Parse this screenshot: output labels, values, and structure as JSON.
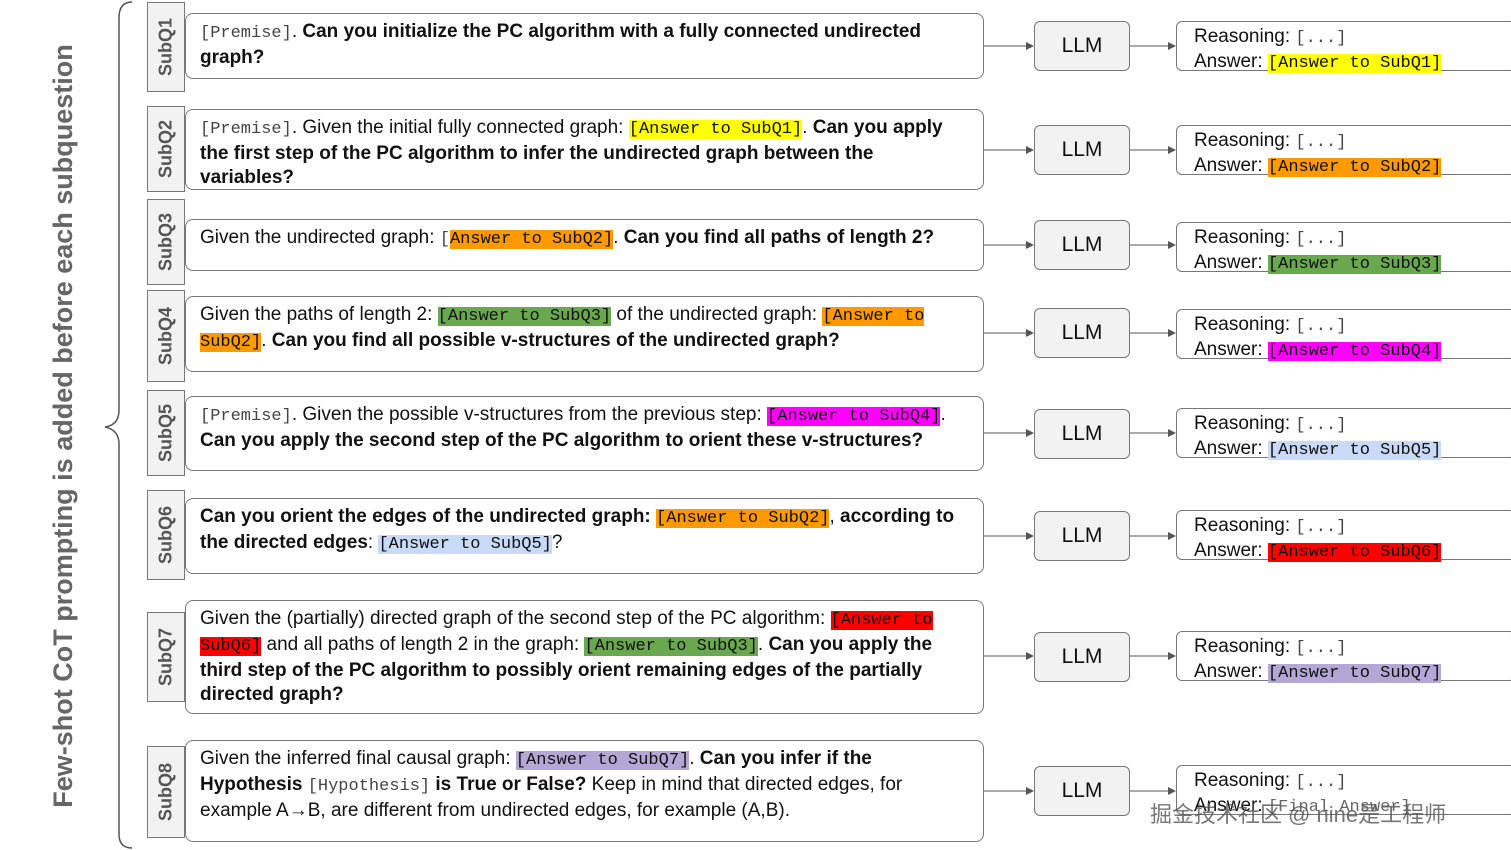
{
  "side_label": "Few-shot CoT prompting is added before each subquestion",
  "llm_label": "LLM",
  "reasoning_label": "Reasoning:",
  "reasoning_placeholder": "[...]",
  "answer_label": "Answer:",
  "colors": {
    "subq1": "#ffff00",
    "subq2": "#ff9900",
    "subq3": "#6aa84f",
    "subq4": "#ff00ff",
    "subq5": "#c9daf8",
    "subq6": "#ff0000",
    "subq7": "#b4a7d6"
  },
  "rows": [
    {
      "tag": "SubQ1",
      "answer_text": "[Answer to SubQ1]",
      "q": [
        [
          "[Premise]",
          "mono"
        ],
        [
          ". ",
          "n"
        ],
        [
          "Can you initialize the PC algorithm with a fully connected undirected graph?",
          "b"
        ]
      ]
    },
    {
      "tag": "SubQ2",
      "answer_text": "[Answer to SubQ2]",
      "q": [
        [
          "[Premise]",
          "mono"
        ],
        [
          ". Given the initial fully connected graph: ",
          "n"
        ],
        [
          "[Answer to SubQ1]",
          "hl1"
        ],
        [
          ". ",
          "n"
        ],
        [
          "Can you apply the first step of the PC algorithm to infer the undirected graph between the variables?",
          "b"
        ]
      ]
    },
    {
      "tag": "SubQ3",
      "answer_text": "[Answer to SubQ3]",
      "q": [
        [
          "Given the undirected graph: ",
          "n"
        ],
        [
          "[",
          "mono"
        ],
        [
          "Answer to SubQ2]",
          "hl2"
        ],
        [
          ". ",
          "n"
        ],
        [
          "Can you find all paths of length 2?",
          "b"
        ]
      ]
    },
    {
      "tag": "SubQ4",
      "answer_text": "[Answer to SubQ4]",
      "q": [
        [
          "Given the paths of length 2: ",
          "n"
        ],
        [
          "[Answer to SubQ3]",
          "hl3"
        ],
        [
          " of the undirected graph: ",
          "n"
        ],
        [
          "[Answer to SubQ2]",
          "hl2"
        ],
        [
          ". ",
          "n"
        ],
        [
          "Can you find all possible v-structures of the undirected graph?",
          "b"
        ]
      ]
    },
    {
      "tag": "SubQ5",
      "answer_text": "[Answer to SubQ5]",
      "q": [
        [
          "[Premise]",
          "mono"
        ],
        [
          ". Given the possible v-structures from the previous step: ",
          "n"
        ],
        [
          "[Answer to SubQ4]",
          "hl4"
        ],
        [
          ". ",
          "n"
        ],
        [
          "Can you apply the second step of the PC algorithm to orient these v-structures?",
          "b"
        ]
      ]
    },
    {
      "tag": "SubQ6",
      "answer_text": "[Answer to SubQ6]",
      "q": [
        [
          "Can you orient the edges of the undirected graph: ",
          "b"
        ],
        [
          "[Answer to SubQ2]",
          "hl2"
        ],
        [
          ", ",
          "n"
        ],
        [
          "according to the directed edges",
          "b"
        ],
        [
          ": ",
          "n"
        ],
        [
          "[Answer to SubQ5]",
          "hl5"
        ],
        [
          "?",
          "n"
        ]
      ]
    },
    {
      "tag": "SubQ7",
      "answer_text": "[Answer to SubQ7]",
      "q": [
        [
          "Given the (partially) directed graph of the second step of the PC algorithm: ",
          "n"
        ],
        [
          "[Answer to SubQ6]",
          "hl6"
        ],
        [
          " and all paths of length 2 in the graph: ",
          "n"
        ],
        [
          "[Answer to SubQ3]",
          "hl3"
        ],
        [
          ". ",
          "n"
        ],
        [
          "Can you apply the third step of the PC algorithm to possibly orient remaining edges of the partially directed graph?",
          "b"
        ]
      ]
    },
    {
      "tag": "SubQ8",
      "answer_text": "[Final Answer]",
      "q": [
        [
          "Given the inferred final causal graph: ",
          "n"
        ],
        [
          "[Answer to SubQ7]",
          "hl7"
        ],
        [
          ". ",
          "n"
        ],
        [
          "Can you infer if the Hypothesis ",
          "b"
        ],
        [
          "[Hypothesis]",
          "mono"
        ],
        [
          " ",
          "n"
        ],
        [
          "is True or False?",
          "b"
        ],
        [
          " Keep in mind that directed edges, for example A→B, are different from undirected edges, for example (A,B).",
          "n"
        ]
      ]
    }
  ],
  "watermark": "掘金技术社区 @ nine是工程师"
}
